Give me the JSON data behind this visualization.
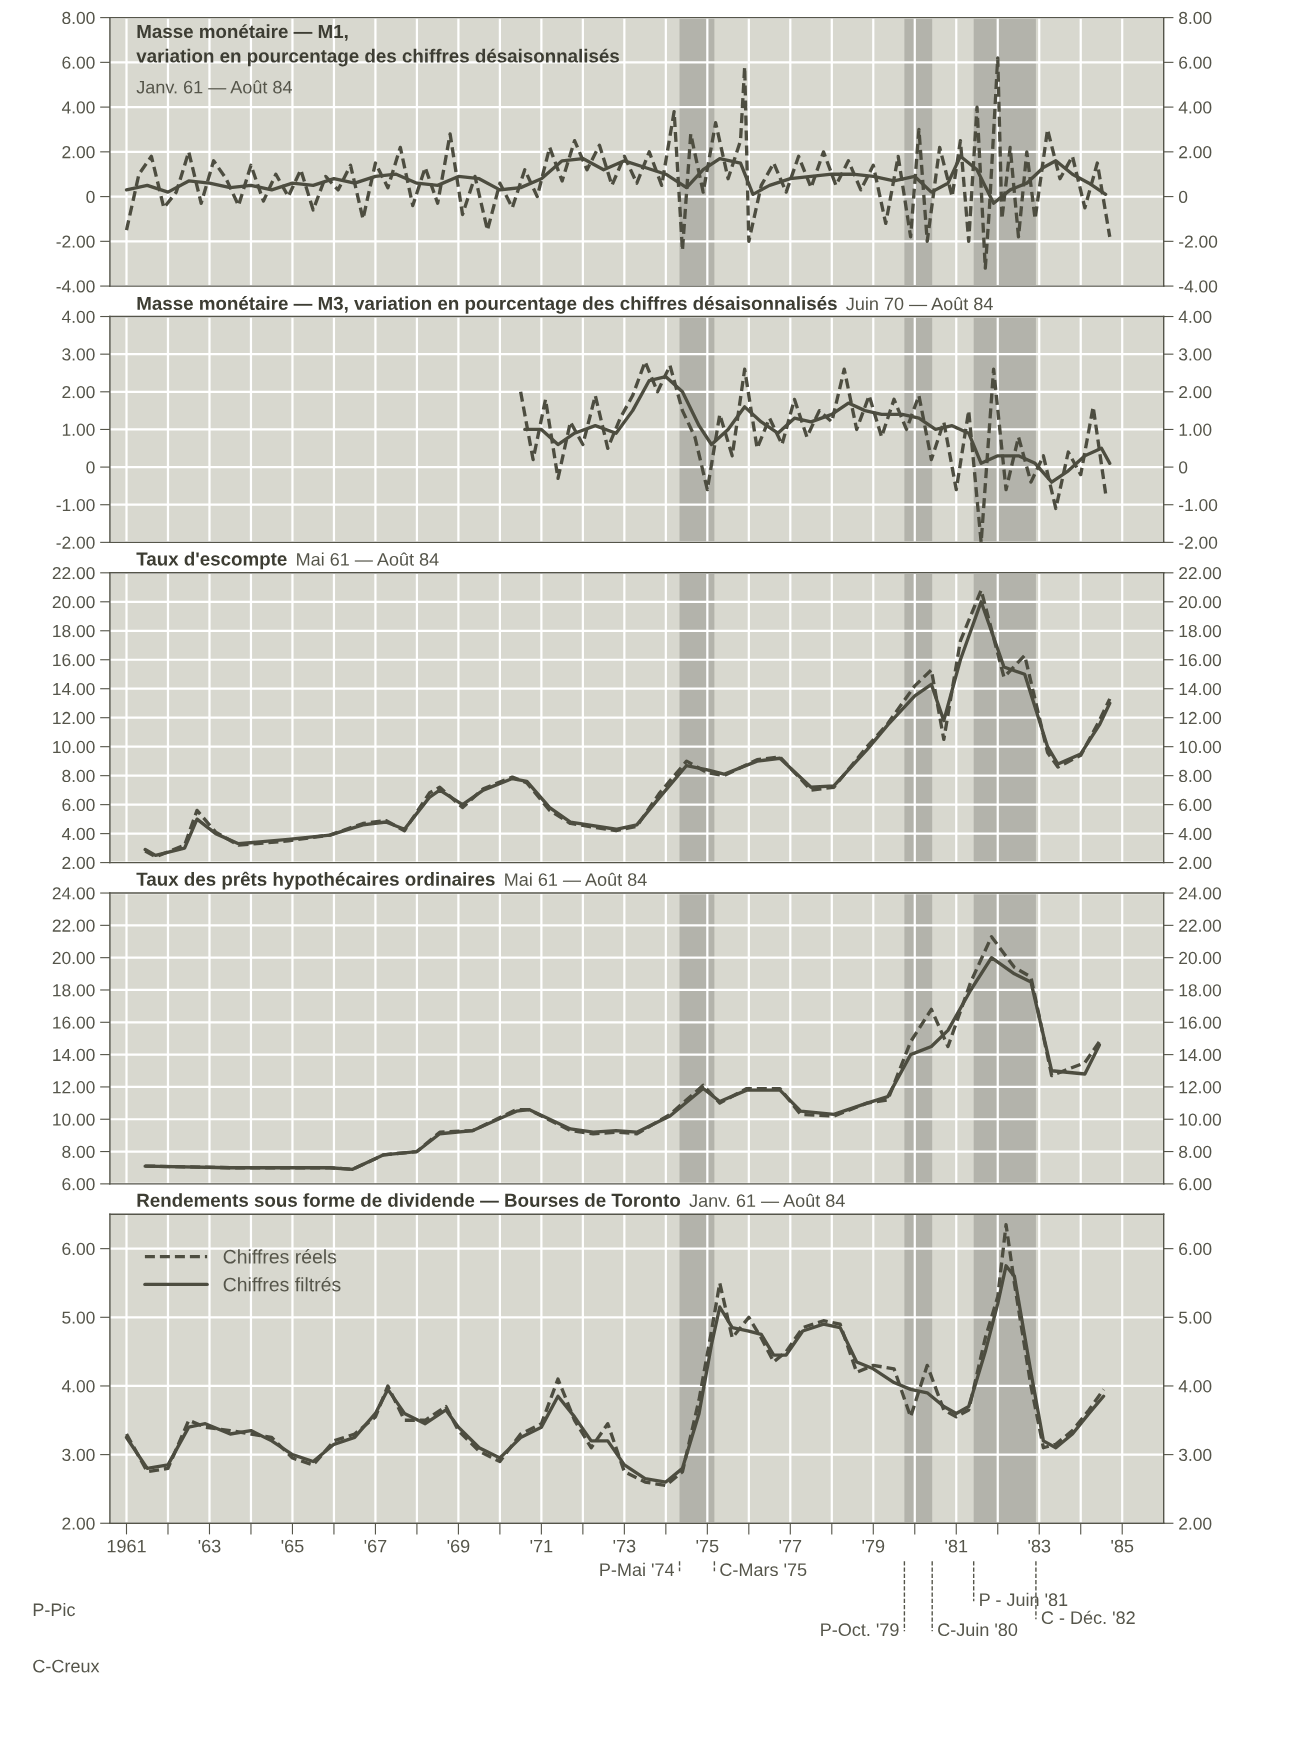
{
  "chart_data": [
    {
      "type": "line",
      "title": "Masse monétaire — M1,\nvariation en pourcentage des chiffres désaisonnalisés",
      "subtitle": "Janv. 61 — Août 84",
      "series": [
        {
          "color": "#4d4d40",
          "line_style": "dashed",
          "x": [
            1961.0,
            1961.3,
            1961.6,
            1961.9,
            1962.2,
            1962.5,
            1962.8,
            1963.1,
            1963.4,
            1963.7,
            1964.0,
            1964.3,
            1964.6,
            1964.9,
            1965.2,
            1965.5,
            1965.8,
            1966.1,
            1966.4,
            1966.7,
            1967.0,
            1967.3,
            1967.6,
            1967.9,
            1968.2,
            1968.5,
            1968.8,
            1969.1,
            1969.4,
            1969.7,
            1970.0,
            1970.3,
            1970.6,
            1970.9,
            1971.2,
            1971.5,
            1971.8,
            1972.1,
            1972.4,
            1972.7,
            1973.0,
            1973.3,
            1973.6,
            1973.9,
            1974.2,
            1974.4,
            1974.6,
            1974.9,
            1975.2,
            1975.5,
            1975.8,
            1975.9,
            1976.0,
            1976.3,
            1976.6,
            1976.9,
            1977.2,
            1977.5,
            1977.8,
            1978.1,
            1978.4,
            1978.7,
            1979.0,
            1979.3,
            1979.6,
            1979.9,
            1980.1,
            1980.3,
            1980.6,
            1980.9,
            1981.1,
            1981.3,
            1981.5,
            1981.7,
            1981.8,
            1982.0,
            1982.1,
            1982.3,
            1982.5,
            1982.7,
            1982.9,
            1983.2,
            1983.5,
            1983.8,
            1984.1,
            1984.4,
            1984.7
          ],
          "values": [
            -1.5,
            1.0,
            1.8,
            -0.5,
            0.2,
            2.0,
            -0.3,
            1.6,
            0.8,
            -0.4,
            1.4,
            -0.2,
            1.0,
            0.0,
            1.2,
            -0.6,
            0.9,
            0.3,
            1.4,
            -1.0,
            1.5,
            0.4,
            2.2,
            -0.4,
            1.3,
            -0.3,
            2.8,
            -0.8,
            0.9,
            -1.5,
            0.6,
            -0.5,
            1.2,
            0.0,
            2.2,
            0.7,
            2.5,
            1.2,
            2.3,
            0.5,
            1.8,
            0.6,
            2.0,
            0.5,
            3.8,
            -2.4,
            2.8,
            0.2,
            3.3,
            0.8,
            2.5,
            5.8,
            -2.0,
            0.5,
            1.5,
            0.2,
            1.8,
            0.4,
            2.0,
            0.5,
            1.6,
            0.3,
            1.4,
            -1.2,
            1.8,
            -1.8,
            3.0,
            -2.0,
            2.2,
            0.0,
            2.5,
            -2.0,
            4.0,
            -3.2,
            -0.5,
            6.2,
            -1.0,
            2.2,
            -1.8,
            2.0,
            -1.0,
            3.0,
            0.8,
            1.8,
            -0.5,
            1.5,
            -1.8
          ]
        },
        {
          "color": "#4d4d40",
          "line_style": "solid",
          "x": [
            1961.0,
            1961.5,
            1962.0,
            1962.5,
            1963.0,
            1963.5,
            1964.0,
            1964.5,
            1965.0,
            1965.5,
            1966.0,
            1966.5,
            1967.0,
            1967.5,
            1968.0,
            1968.5,
            1969.0,
            1969.5,
            1970.0,
            1970.5,
            1971.0,
            1971.5,
            1972.0,
            1972.5,
            1973.0,
            1973.5,
            1974.0,
            1974.5,
            1974.9,
            1975.3,
            1975.8,
            1976.1,
            1976.5,
            1977.0,
            1977.5,
            1978.0,
            1978.5,
            1979.0,
            1979.5,
            1980.0,
            1980.4,
            1980.8,
            1981.1,
            1981.5,
            1981.9,
            1982.3,
            1982.7,
            1983.1,
            1983.4,
            1983.8,
            1984.2,
            1984.6
          ],
          "values": [
            0.3,
            0.5,
            0.2,
            0.7,
            0.6,
            0.4,
            0.5,
            0.3,
            0.6,
            0.5,
            0.8,
            0.6,
            0.9,
            1.0,
            0.6,
            0.5,
            0.9,
            0.8,
            0.3,
            0.4,
            0.8,
            1.6,
            1.7,
            1.2,
            1.6,
            1.3,
            1.0,
            0.4,
            1.2,
            1.7,
            1.5,
            0.1,
            0.5,
            0.8,
            0.9,
            1.0,
            1.0,
            0.9,
            0.7,
            0.9,
            0.2,
            0.6,
            1.8,
            1.2,
            -0.3,
            0.3,
            0.6,
            1.3,
            1.6,
            1.0,
            0.6,
            0.1
          ]
        }
      ],
      "xlim": [
        1960.6,
        1986.0
      ],
      "xticks": [
        1961,
        1962,
        1963,
        1964,
        1965,
        1966,
        1967,
        1968,
        1969,
        1970,
        1971,
        1972,
        1973,
        1974,
        1975,
        1976,
        1977,
        1978,
        1979,
        1980,
        1981,
        1982,
        1983,
        1984,
        1985
      ],
      "ylim": [
        -4,
        8
      ],
      "yticks": [
        {
          "value": -4,
          "label": "-4.00"
        },
        {
          "value": -2,
          "label": "-2.00"
        },
        {
          "value": 0,
          "label": "0"
        },
        {
          "value": 2,
          "label": "2.00"
        },
        {
          "value": 4,
          "label": "4.00"
        },
        {
          "value": 6,
          "label": "6.00"
        },
        {
          "value": 8,
          "label": "8.00"
        }
      ],
      "tick_labels": "y",
      "grid": true,
      "bands": [
        {
          "axis": "x",
          "from": 1974.33,
          "to": 1975.17,
          "color": "#b3b3ab"
        },
        {
          "axis": "x",
          "from": 1979.75,
          "to": 1980.42,
          "color": "#b3b3ab"
        },
        {
          "axis": "x",
          "from": 1981.42,
          "to": 1982.92,
          "color": "#b3b3ab"
        }
      ]
    },
    {
      "type": "line",
      "title": "Masse monétaire — M3, variation en pourcentage des chiffres désaisonnalisés",
      "subtitle": "Juin 70 — Août 84",
      "series": [
        {
          "color": "#4d4d40",
          "line_style": "dashed",
          "x": [
            1970.5,
            1970.8,
            1971.1,
            1971.4,
            1971.7,
            1972.0,
            1972.3,
            1972.6,
            1972.9,
            1973.2,
            1973.5,
            1973.8,
            1974.1,
            1974.4,
            1974.7,
            1975.0,
            1975.3,
            1975.6,
            1975.9,
            1976.2,
            1976.5,
            1976.8,
            1977.1,
            1977.4,
            1977.7,
            1978.0,
            1978.3,
            1978.6,
            1978.9,
            1979.2,
            1979.5,
            1979.8,
            1980.1,
            1980.4,
            1980.7,
            1981.0,
            1981.3,
            1981.6,
            1981.9,
            1982.2,
            1982.5,
            1982.8,
            1983.1,
            1983.4,
            1983.7,
            1984.0,
            1984.3,
            1984.6
          ],
          "values": [
            2.0,
            0.2,
            1.8,
            -0.3,
            1.2,
            0.6,
            1.9,
            0.5,
            1.3,
            1.9,
            2.8,
            2.0,
            2.7,
            1.5,
            0.8,
            -0.6,
            1.4,
            0.3,
            2.6,
            0.5,
            1.3,
            0.6,
            1.8,
            0.8,
            1.5,
            1.2,
            2.6,
            1.0,
            1.9,
            0.8,
            1.8,
            1.0,
            1.9,
            0.2,
            1.2,
            -0.6,
            1.5,
            -2.0,
            2.6,
            -0.6,
            0.8,
            -0.4,
            0.3,
            -1.1,
            0.4,
            -0.2,
            1.6,
            -0.7
          ]
        },
        {
          "color": "#4d4d40",
          "line_style": "solid",
          "x": [
            1970.6,
            1971.0,
            1971.4,
            1971.8,
            1972.3,
            1972.8,
            1973.2,
            1973.6,
            1974.0,
            1974.4,
            1974.8,
            1975.1,
            1975.5,
            1975.9,
            1976.3,
            1976.7,
            1977.1,
            1977.5,
            1978.0,
            1978.4,
            1978.8,
            1979.2,
            1979.7,
            1980.1,
            1980.5,
            1980.9,
            1981.3,
            1981.6,
            1982.0,
            1982.5,
            1982.9,
            1983.3,
            1983.7,
            1984.1,
            1984.5,
            1984.7
          ],
          "values": [
            1.0,
            1.0,
            0.6,
            0.9,
            1.1,
            0.9,
            1.5,
            2.3,
            2.4,
            2.0,
            1.1,
            0.6,
            1.0,
            1.6,
            1.2,
            0.9,
            1.3,
            1.2,
            1.4,
            1.7,
            1.5,
            1.4,
            1.4,
            1.3,
            1.0,
            1.1,
            0.9,
            0.1,
            0.3,
            0.3,
            0.1,
            -0.4,
            -0.1,
            0.3,
            0.5,
            0.1
          ]
        }
      ],
      "xlim": [
        1960.6,
        1986.0
      ],
      "xticks": [
        1961,
        1962,
        1963,
        1964,
        1965,
        1966,
        1967,
        1968,
        1969,
        1970,
        1971,
        1972,
        1973,
        1974,
        1975,
        1976,
        1977,
        1978,
        1979,
        1980,
        1981,
        1982,
        1983,
        1984,
        1985
      ],
      "ylim": [
        -2,
        4
      ],
      "yticks": [
        {
          "value": -2,
          "label": "-2.00"
        },
        {
          "value": -1,
          "label": "-1.00"
        },
        {
          "value": 0,
          "label": "0"
        },
        {
          "value": 1,
          "label": "1.00"
        },
        {
          "value": 2,
          "label": "2.00"
        },
        {
          "value": 3,
          "label": "3.00"
        },
        {
          "value": 4,
          "label": "4.00"
        }
      ],
      "tick_labels": "y",
      "grid": true,
      "bands": [
        {
          "axis": "x",
          "from": 1974.33,
          "to": 1975.17,
          "color": "#b3b3ab"
        },
        {
          "axis": "x",
          "from": 1979.75,
          "to": 1980.42,
          "color": "#b3b3ab"
        },
        {
          "axis": "x",
          "from": 1981.42,
          "to": 1982.92,
          "color": "#b3b3ab"
        }
      ]
    },
    {
      "type": "line",
      "title": "Taux d'escompte",
      "subtitle": "Mai 61 — Août 84",
      "series": [
        {
          "color": "#4d4d40",
          "line_style": "dashed",
          "x": [
            1961.45,
            1961.7,
            1962.4,
            1962.7,
            1963.15,
            1963.7,
            1964.9,
            1965.9,
            1966.7,
            1967.25,
            1967.7,
            1968.3,
            1968.55,
            1969.1,
            1969.6,
            1970.3,
            1970.65,
            1971.2,
            1971.7,
            1972.8,
            1973.3,
            1973.85,
            1974.5,
            1975.0,
            1975.4,
            1976.2,
            1976.75,
            1977.5,
            1978.05,
            1978.85,
            1979.35,
            1980.0,
            1980.4,
            1980.7,
            1981.1,
            1981.6,
            1982.15,
            1982.65,
            1983.2,
            1983.45,
            1984.0,
            1984.45,
            1984.7
          ],
          "values": [
            2.8,
            2.4,
            3.2,
            5.6,
            4.1,
            3.2,
            3.5,
            3.9,
            4.7,
            4.9,
            4.2,
            6.8,
            7.2,
            5.8,
            7.1,
            7.9,
            7.5,
            5.6,
            4.7,
            4.2,
            4.5,
            6.8,
            9.0,
            8.2,
            8.0,
            9.1,
            9.3,
            7.0,
            7.2,
            10.0,
            11.6,
            14.2,
            15.3,
            10.5,
            17.3,
            20.8,
            14.8,
            16.3,
            9.6,
            8.6,
            9.4,
            11.8,
            13.3
          ]
        },
        {
          "color": "#4d4d40",
          "line_style": "solid",
          "x": [
            1961.45,
            1961.7,
            1962.4,
            1962.7,
            1963.15,
            1963.7,
            1964.9,
            1965.9,
            1966.7,
            1967.25,
            1967.7,
            1968.3,
            1968.55,
            1969.1,
            1969.6,
            1970.3,
            1970.65,
            1971.2,
            1971.7,
            1972.8,
            1973.3,
            1973.85,
            1974.5,
            1975.0,
            1975.4,
            1976.2,
            1976.75,
            1977.5,
            1978.05,
            1978.85,
            1979.35,
            1980.0,
            1980.4,
            1980.7,
            1981.1,
            1981.6,
            1982.15,
            1982.65,
            1983.2,
            1983.45,
            1984.0,
            1984.45,
            1984.7
          ],
          "values": [
            2.9,
            2.5,
            3.0,
            5.0,
            4.0,
            3.3,
            3.6,
            3.9,
            4.6,
            4.8,
            4.3,
            6.5,
            7.0,
            6.0,
            7.0,
            7.8,
            7.6,
            5.8,
            4.8,
            4.3,
            4.6,
            6.5,
            8.7,
            8.4,
            8.1,
            9.0,
            9.2,
            7.2,
            7.3,
            9.8,
            11.5,
            13.5,
            14.3,
            11.8,
            16.0,
            20.0,
            15.5,
            15.0,
            10.0,
            8.8,
            9.5,
            11.5,
            13.0
          ]
        }
      ],
      "xlim": [
        1960.6,
        1986.0
      ],
      "xticks": [
        1961,
        1962,
        1963,
        1964,
        1965,
        1966,
        1967,
        1968,
        1969,
        1970,
        1971,
        1972,
        1973,
        1974,
        1975,
        1976,
        1977,
        1978,
        1979,
        1980,
        1981,
        1982,
        1983,
        1984,
        1985
      ],
      "ylim": [
        2,
        22
      ],
      "yticks": [
        {
          "value": 2,
          "label": "2.00"
        },
        {
          "value": 4,
          "label": "4.00"
        },
        {
          "value": 6,
          "label": "6.00"
        },
        {
          "value": 8,
          "label": "8.00"
        },
        {
          "value": 10,
          "label": "10.00"
        },
        {
          "value": 12,
          "label": "12.00"
        },
        {
          "value": 14,
          "label": "14.00"
        },
        {
          "value": 16,
          "label": "16.00"
        },
        {
          "value": 18,
          "label": "18.00"
        },
        {
          "value": 20,
          "label": "20.00"
        },
        {
          "value": 22,
          "label": "22.00"
        }
      ],
      "tick_labels": "y",
      "grid": true,
      "bands": [
        {
          "axis": "x",
          "from": 1974.33,
          "to": 1975.17,
          "color": "#b3b3ab"
        },
        {
          "axis": "x",
          "from": 1979.75,
          "to": 1980.42,
          "color": "#b3b3ab"
        },
        {
          "axis": "x",
          "from": 1981.42,
          "to": 1982.92,
          "color": "#b3b3ab"
        }
      ]
    },
    {
      "type": "line",
      "title": "Taux des prêts hypothécaires ordinaires",
      "subtitle": "Mai 61 — Août 84",
      "series": [
        {
          "color": "#4d4d40",
          "line_style": "dashed",
          "x": [
            1961.45,
            1963.5,
            1965.9,
            1966.45,
            1967.2,
            1968.0,
            1968.55,
            1969.35,
            1970.4,
            1970.7,
            1971.7,
            1972.25,
            1972.8,
            1973.3,
            1974.1,
            1974.9,
            1975.3,
            1975.95,
            1976.75,
            1977.25,
            1978.05,
            1978.85,
            1979.35,
            1979.9,
            1980.4,
            1980.8,
            1981.35,
            1981.85,
            1982.4,
            1982.8,
            1983.3,
            1984.1,
            1984.45
          ],
          "values": [
            7.1,
            7.0,
            7.0,
            6.9,
            7.8,
            8.0,
            9.2,
            9.3,
            10.6,
            10.6,
            9.3,
            9.1,
            9.2,
            9.1,
            10.3,
            12.1,
            11.0,
            11.9,
            11.9,
            10.3,
            10.2,
            11.0,
            11.2,
            14.8,
            16.8,
            14.5,
            18.5,
            21.3,
            19.4,
            18.8,
            12.7,
            13.5,
            14.8
          ]
        },
        {
          "color": "#4d4d40",
          "line_style": "solid",
          "x": [
            1961.45,
            1963.5,
            1965.9,
            1966.45,
            1967.2,
            1968.0,
            1968.55,
            1969.35,
            1970.4,
            1970.7,
            1971.7,
            1972.25,
            1972.8,
            1973.3,
            1974.1,
            1974.9,
            1975.3,
            1975.95,
            1976.75,
            1977.25,
            1978.05,
            1978.85,
            1979.35,
            1979.9,
            1980.4,
            1980.8,
            1981.35,
            1981.85,
            1982.4,
            1982.8,
            1983.3,
            1984.1,
            1984.45
          ],
          "values": [
            7.1,
            7.0,
            7.0,
            6.9,
            7.8,
            8.0,
            9.1,
            9.3,
            10.5,
            10.6,
            9.4,
            9.2,
            9.3,
            9.2,
            10.2,
            11.9,
            11.1,
            11.8,
            11.8,
            10.5,
            10.3,
            11.0,
            11.4,
            14.0,
            14.5,
            15.5,
            18.0,
            20.0,
            19.0,
            18.5,
            13.0,
            12.8,
            14.6
          ]
        }
      ],
      "xlim": [
        1960.6,
        1986.0
      ],
      "xticks": [
        1961,
        1962,
        1963,
        1964,
        1965,
        1966,
        1967,
        1968,
        1969,
        1970,
        1971,
        1972,
        1973,
        1974,
        1975,
        1976,
        1977,
        1978,
        1979,
        1980,
        1981,
        1982,
        1983,
        1984,
        1985
      ],
      "ylim": [
        6,
        24
      ],
      "yticks": [
        {
          "value": 6,
          "label": "6.00"
        },
        {
          "value": 8,
          "label": "8.00"
        },
        {
          "value": 10,
          "label": "10.00"
        },
        {
          "value": 12,
          "label": "12.00"
        },
        {
          "value": 14,
          "label": "14.00"
        },
        {
          "value": 16,
          "label": "16.00"
        },
        {
          "value": 18,
          "label": "18.00"
        },
        {
          "value": 20,
          "label": "20.00"
        },
        {
          "value": 22,
          "label": "22.00"
        },
        {
          "value": 24,
          "label": "24.00"
        }
      ],
      "tick_labels": "y",
      "grid": true,
      "bands": [
        {
          "axis": "x",
          "from": 1974.33,
          "to": 1975.17,
          "color": "#b3b3ab"
        },
        {
          "axis": "x",
          "from": 1979.75,
          "to": 1980.42,
          "color": "#b3b3ab"
        },
        {
          "axis": "x",
          "from": 1981.42,
          "to": 1982.92,
          "color": "#b3b3ab"
        }
      ]
    },
    {
      "type": "line",
      "title": "Rendements sous forme de dividende — Bourses de Toronto",
      "subtitle": "Janv. 61 — Août 84",
      "series": [
        {
          "name": "Chiffres réels",
          "color": "#4d4d40",
          "line_style": "dashed",
          "x": [
            1961.0,
            1961.5,
            1962.0,
            1962.5,
            1962.9,
            1963.5,
            1964.0,
            1964.5,
            1965.0,
            1965.5,
            1966.0,
            1966.5,
            1967.0,
            1967.3,
            1967.7,
            1968.2,
            1968.7,
            1969.0,
            1969.5,
            1970.0,
            1970.5,
            1971.0,
            1971.4,
            1971.8,
            1972.2,
            1972.6,
            1973.0,
            1973.5,
            1974.0,
            1974.4,
            1974.8,
            1975.1,
            1975.3,
            1975.6,
            1976.0,
            1976.3,
            1976.6,
            1976.9,
            1977.3,
            1977.8,
            1978.2,
            1978.6,
            1979.0,
            1979.5,
            1979.9,
            1980.3,
            1980.7,
            1981.0,
            1981.3,
            1981.7,
            1982.0,
            1982.2,
            1982.4,
            1982.8,
            1983.1,
            1983.4,
            1983.8,
            1984.2,
            1984.55
          ],
          "values": [
            3.3,
            2.75,
            2.8,
            3.5,
            3.4,
            3.35,
            3.3,
            3.25,
            2.95,
            2.85,
            3.2,
            3.3,
            3.55,
            4.0,
            3.5,
            3.5,
            3.7,
            3.35,
            3.05,
            2.9,
            3.3,
            3.45,
            4.1,
            3.5,
            3.1,
            3.45,
            2.75,
            2.6,
            2.55,
            2.75,
            3.8,
            4.8,
            5.5,
            4.7,
            5.0,
            4.7,
            4.35,
            4.5,
            4.85,
            4.95,
            4.9,
            4.2,
            4.3,
            4.25,
            3.55,
            4.3,
            3.65,
            3.55,
            3.65,
            4.7,
            5.3,
            6.35,
            5.5,
            4.0,
            3.1,
            3.15,
            3.35,
            3.65,
            3.95
          ]
        },
        {
          "name": "Chiffres filtrés",
          "color": "#4d4d40",
          "line_style": "solid",
          "x": [
            1961.0,
            1961.5,
            1962.0,
            1962.5,
            1962.9,
            1963.5,
            1964.0,
            1964.5,
            1965.0,
            1965.5,
            1966.0,
            1966.5,
            1967.0,
            1967.3,
            1967.7,
            1968.2,
            1968.7,
            1969.0,
            1969.5,
            1970.0,
            1970.5,
            1971.0,
            1971.4,
            1971.8,
            1972.2,
            1972.6,
            1973.0,
            1973.5,
            1974.0,
            1974.4,
            1974.8,
            1975.1,
            1975.3,
            1975.6,
            1976.0,
            1976.3,
            1976.6,
            1976.9,
            1977.3,
            1977.8,
            1978.2,
            1978.6,
            1979.0,
            1979.5,
            1979.9,
            1980.3,
            1980.7,
            1981.0,
            1981.3,
            1981.7,
            1982.0,
            1982.2,
            1982.4,
            1982.8,
            1983.1,
            1983.4,
            1983.8,
            1984.2,
            1984.55
          ],
          "values": [
            3.25,
            2.8,
            2.85,
            3.4,
            3.45,
            3.3,
            3.35,
            3.2,
            3.0,
            2.9,
            3.15,
            3.25,
            3.6,
            3.95,
            3.6,
            3.45,
            3.65,
            3.4,
            3.1,
            2.95,
            3.25,
            3.4,
            3.85,
            3.55,
            3.2,
            3.2,
            2.85,
            2.65,
            2.6,
            2.8,
            3.6,
            4.6,
            5.15,
            4.85,
            4.8,
            4.75,
            4.45,
            4.45,
            4.8,
            4.9,
            4.85,
            4.35,
            4.25,
            4.05,
            3.95,
            3.9,
            3.7,
            3.6,
            3.7,
            4.5,
            5.2,
            5.75,
            5.6,
            4.2,
            3.2,
            3.1,
            3.3,
            3.6,
            3.85
          ]
        }
      ],
      "xlim": [
        1960.6,
        1986.0
      ],
      "xticks": [
        1961,
        {
          "value": 1962,
          "label": null
        },
        {
          "value": 1963,
          "label": "'63"
        },
        {
          "value": 1964,
          "label": null
        },
        {
          "value": 1965,
          "label": "'65"
        },
        {
          "value": 1966,
          "label": null
        },
        {
          "value": 1967,
          "label": "'67"
        },
        {
          "value": 1968,
          "label": null
        },
        {
          "value": 1969,
          "label": "'69"
        },
        {
          "value": 1970,
          "label": null
        },
        {
          "value": 1971,
          "label": "'71"
        },
        {
          "value": 1972,
          "label": null
        },
        {
          "value": 1973,
          "label": "'73"
        },
        {
          "value": 1974,
          "label": null
        },
        {
          "value": 1975,
          "label": "'75"
        },
        {
          "value": 1976,
          "label": null
        },
        {
          "value": 1977,
          "label": "'77"
        },
        {
          "value": 1978,
          "label": null
        },
        {
          "value": 1979,
          "label": "'79"
        },
        {
          "value": 1980,
          "label": null
        },
        {
          "value": 1981,
          "label": "'81"
        },
        {
          "value": 1982,
          "label": null
        },
        {
          "value": 1983,
          "label": "'83"
        },
        {
          "value": 1984,
          "label": null
        },
        {
          "value": 1985,
          "label": "'85"
        }
      ],
      "ylim": [
        2,
        6.5
      ],
      "yticks": [
        {
          "value": 2,
          "label": "2.00"
        },
        {
          "value": 3,
          "label": "3.00"
        },
        {
          "value": 4,
          "label": "4.00"
        },
        {
          "value": 5,
          "label": "5.00"
        },
        {
          "value": 6,
          "label": "6.00"
        }
      ],
      "grid": true,
      "legend": "top left",
      "bands": [
        {
          "axis": "x",
          "from": 1974.33,
          "to": 1975.17,
          "color": "#b3b3ab"
        },
        {
          "axis": "x",
          "from": 1979.75,
          "to": 1980.42,
          "color": "#b3b3ab"
        },
        {
          "axis": "x",
          "from": 1981.42,
          "to": 1982.92,
          "color": "#b3b3ab"
        }
      ],
      "ref_lines": [
        {
          "axis": "x",
          "value": 1974.33,
          "label": "P-Mai '74",
          "line_style": "dashed"
        },
        {
          "axis": "x",
          "value": 1975.17,
          "label": "C-Mars '75",
          "line_style": "dashed"
        },
        {
          "axis": "x",
          "value": 1979.75,
          "label": "P-Oct. '79",
          "line_style": "dashed"
        },
        {
          "axis": "x",
          "value": 1980.42,
          "label": "C-Juin '80",
          "line_style": "dashed"
        },
        {
          "axis": "x",
          "value": 1981.42,
          "label": "P - Juin '81",
          "line_style": "dashed"
        },
        {
          "axis": "x",
          "value": 1982.92,
          "label": "C - Déc. '82",
          "line_style": "dashed"
        }
      ],
      "annotations": [
        "P-Pic",
        "C-Creux"
      ]
    }
  ]
}
